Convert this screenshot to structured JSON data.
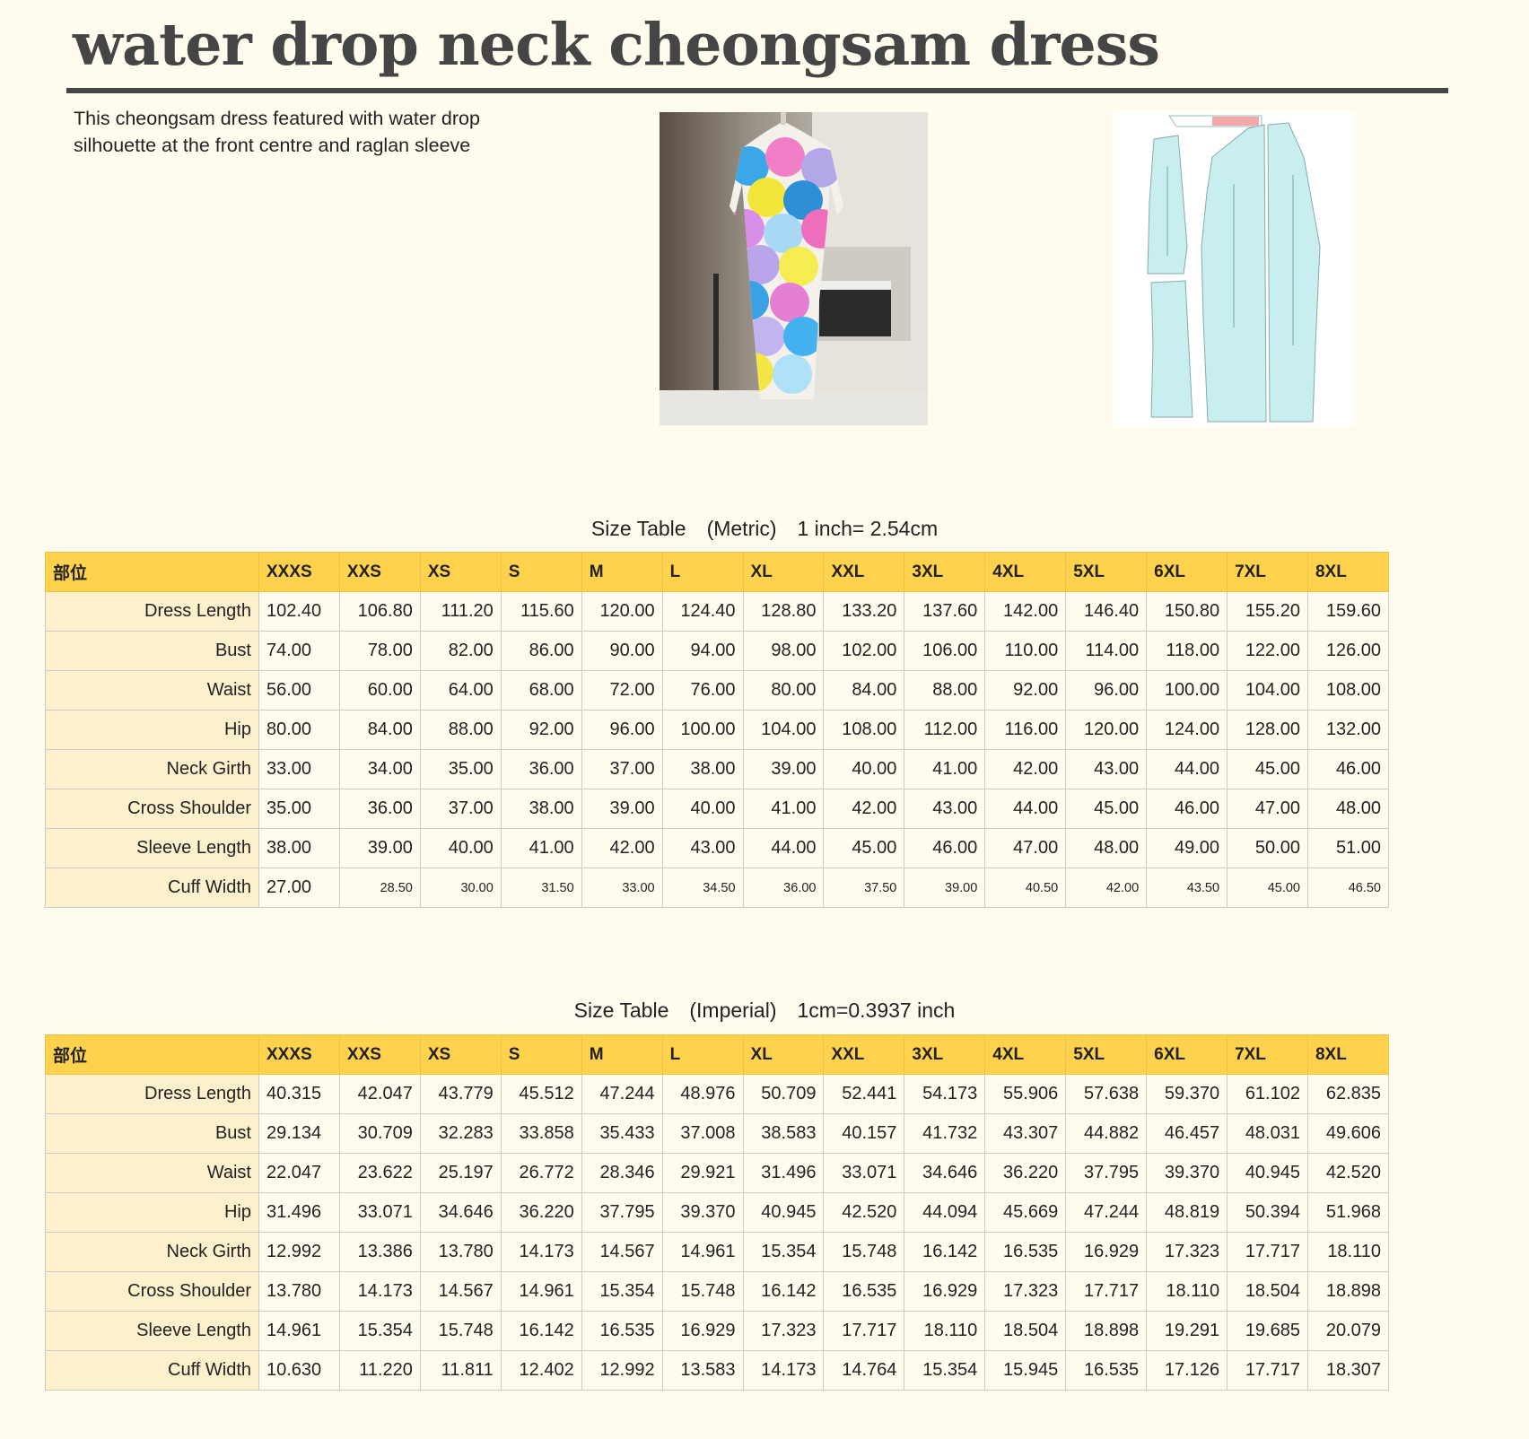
{
  "title": "water drop neck cheongsam dress",
  "description": "This cheongsam dress featured with water drop silhouette at the front centre and raglan sleeve",
  "images": {
    "photo": "cheongsam-photo",
    "pattern": "sewing-pattern-pieces"
  },
  "colors": {
    "background": "#fffcef",
    "header_fill": "#ffd24d",
    "label_fill": "#fdf0cc",
    "title_text": "#454545"
  },
  "metric": {
    "caption": "Size Table　(Metric)　1 inch= 2.54cm",
    "corner": "部位",
    "sizes": [
      "XXXS",
      "XXS",
      "XS",
      "S",
      "M",
      "L",
      "XL",
      "XXL",
      "3XL",
      "4XL",
      "5XL",
      "6XL",
      "7XL",
      "8XL"
    ],
    "rows": [
      {
        "label": "Dress Length",
        "values": [
          "102.40",
          "106.80",
          "111.20",
          "115.60",
          "120.00",
          "124.40",
          "128.80",
          "133.20",
          "137.60",
          "142.00",
          "146.40",
          "150.80",
          "155.20",
          "159.60"
        ]
      },
      {
        "label": "Bust",
        "values": [
          "74.00",
          "78.00",
          "82.00",
          "86.00",
          "90.00",
          "94.00",
          "98.00",
          "102.00",
          "106.00",
          "110.00",
          "114.00",
          "118.00",
          "122.00",
          "126.00"
        ]
      },
      {
        "label": "Waist",
        "values": [
          "56.00",
          "60.00",
          "64.00",
          "68.00",
          "72.00",
          "76.00",
          "80.00",
          "84.00",
          "88.00",
          "92.00",
          "96.00",
          "100.00",
          "104.00",
          "108.00"
        ]
      },
      {
        "label": "Hip",
        "values": [
          "80.00",
          "84.00",
          "88.00",
          "92.00",
          "96.00",
          "100.00",
          "104.00",
          "108.00",
          "112.00",
          "116.00",
          "120.00",
          "124.00",
          "128.00",
          "132.00"
        ]
      },
      {
        "label": "Neck Girth",
        "values": [
          "33.00",
          "34.00",
          "35.00",
          "36.00",
          "37.00",
          "38.00",
          "39.00",
          "40.00",
          "41.00",
          "42.00",
          "43.00",
          "44.00",
          "45.00",
          "46.00"
        ]
      },
      {
        "label": "Cross Shoulder",
        "values": [
          "35.00",
          "36.00",
          "37.00",
          "38.00",
          "39.00",
          "40.00",
          "41.00",
          "42.00",
          "43.00",
          "44.00",
          "45.00",
          "46.00",
          "47.00",
          "48.00"
        ]
      },
      {
        "label": "Sleeve Length",
        "values": [
          "38.00",
          "39.00",
          "40.00",
          "41.00",
          "42.00",
          "43.00",
          "44.00",
          "45.00",
          "46.00",
          "47.00",
          "48.00",
          "49.00",
          "50.00",
          "51.00"
        ]
      },
      {
        "label": "Cuff Width",
        "values": [
          "27.00",
          "28.50",
          "30.00",
          "31.50",
          "33.00",
          "34.50",
          "36.00",
          "37.50",
          "39.00",
          "40.50",
          "42.00",
          "43.50",
          "45.00",
          "46.50"
        ],
        "small": true
      }
    ]
  },
  "imperial": {
    "caption": "Size Table　(Imperial)　1cm=0.3937 inch",
    "corner": "部位",
    "sizes": [
      "XXXS",
      "XXS",
      "XS",
      "S",
      "M",
      "L",
      "XL",
      "XXL",
      "3XL",
      "4XL",
      "5XL",
      "6XL",
      "7XL",
      "8XL"
    ],
    "rows": [
      {
        "label": "Dress Length",
        "values": [
          "40.315",
          "42.047",
          "43.779",
          "45.512",
          "47.244",
          "48.976",
          "50.709",
          "52.441",
          "54.173",
          "55.906",
          "57.638",
          "59.370",
          "61.102",
          "62.835"
        ]
      },
      {
        "label": "Bust",
        "values": [
          "29.134",
          "30.709",
          "32.283",
          "33.858",
          "35.433",
          "37.008",
          "38.583",
          "40.157",
          "41.732",
          "43.307",
          "44.882",
          "46.457",
          "48.031",
          "49.606"
        ]
      },
      {
        "label": "Waist",
        "values": [
          "22.047",
          "23.622",
          "25.197",
          "26.772",
          "28.346",
          "29.921",
          "31.496",
          "33.071",
          "34.646",
          "36.220",
          "37.795",
          "39.370",
          "40.945",
          "42.520"
        ]
      },
      {
        "label": "Hip",
        "values": [
          "31.496",
          "33.071",
          "34.646",
          "36.220",
          "37.795",
          "39.370",
          "40.945",
          "42.520",
          "44.094",
          "45.669",
          "47.244",
          "48.819",
          "50.394",
          "51.968"
        ]
      },
      {
        "label": "Neck Girth",
        "values": [
          "12.992",
          "13.386",
          "13.780",
          "14.173",
          "14.567",
          "14.961",
          "15.354",
          "15.748",
          "16.142",
          "16.535",
          "16.929",
          "17.323",
          "17.717",
          "18.110"
        ]
      },
      {
        "label": "Cross Shoulder",
        "values": [
          "13.780",
          "14.173",
          "14.567",
          "14.961",
          "15.354",
          "15.748",
          "16.142",
          "16.535",
          "16.929",
          "17.323",
          "17.717",
          "18.110",
          "18.504",
          "18.898"
        ]
      },
      {
        "label": "Sleeve Length",
        "values": [
          "14.961",
          "15.354",
          "15.748",
          "16.142",
          "16.535",
          "16.929",
          "17.323",
          "17.717",
          "18.110",
          "18.504",
          "18.898",
          "19.291",
          "19.685",
          "20.079"
        ]
      },
      {
        "label": "Cuff Width",
        "values": [
          "10.630",
          "11.220",
          "11.811",
          "12.402",
          "12.992",
          "13.583",
          "14.173",
          "14.764",
          "15.354",
          "15.945",
          "16.535",
          "17.126",
          "17.717",
          "18.307"
        ]
      }
    ]
  }
}
